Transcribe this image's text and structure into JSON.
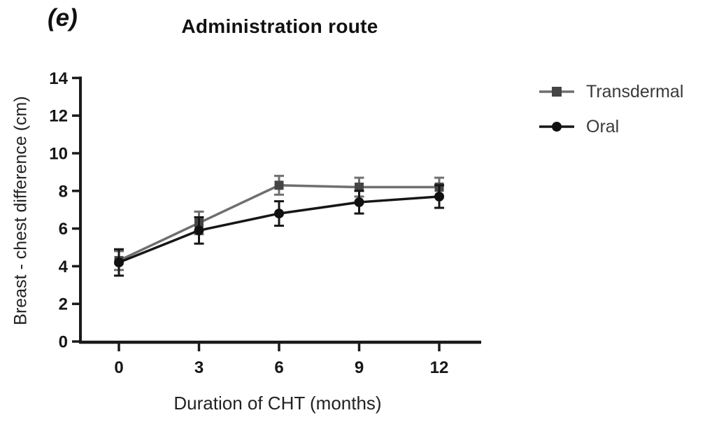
{
  "figure": {
    "panel_label": "(e)"
  },
  "chart_data": {
    "type": "line",
    "title": "Administration route",
    "xlabel": "Duration of CHT (months)",
    "ylabel": "Breast - chest difference (cm)",
    "x": [
      0,
      3,
      6,
      9,
      12
    ],
    "xticks": [
      0,
      3,
      6,
      9,
      12
    ],
    "yticks": [
      0,
      2,
      4,
      6,
      8,
      10,
      12,
      14
    ],
    "xlim": [
      0,
      12
    ],
    "ylim": [
      0,
      14
    ],
    "grid": false,
    "legend_position": "right",
    "error_bars": true,
    "series": [
      {
        "name": "Transdermal",
        "marker": "square",
        "line_color": "#6f6f6f",
        "marker_color": "#454545",
        "values": [
          4.3,
          6.3,
          8.3,
          8.2,
          8.2
        ],
        "error": [
          0.5,
          0.6,
          0.5,
          0.5,
          0.5
        ]
      },
      {
        "name": "Oral",
        "marker": "circle",
        "line_color": "#161616",
        "marker_color": "#111111",
        "values": [
          4.2,
          5.9,
          6.8,
          7.4,
          7.7
        ],
        "error": [
          0.7,
          0.7,
          0.65,
          0.6,
          0.6
        ]
      }
    ]
  },
  "colors": {
    "axis": "#1a1a1a",
    "background": "#ffffff",
    "legend_text": "#3a3a3a"
  }
}
